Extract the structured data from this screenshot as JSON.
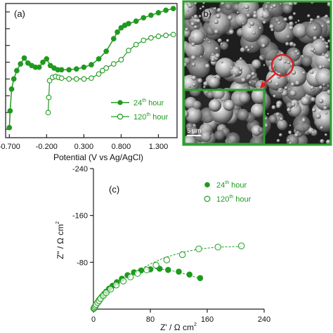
{
  "colors": {
    "series": "#1f9a1f",
    "micrograph_frame": "#2e9e2e",
    "highlight": "#d42020",
    "axis": "#222222"
  },
  "chart_data": [
    {
      "id": "a",
      "type": "line",
      "panel_label": "(a)",
      "xlabel": "Potential (V vs Ag/AgCl)",
      "ylabel": "",
      "xlim": [
        -0.75,
        1.55
      ],
      "ylim": [
        -8.0,
        0.0
      ],
      "xticks": [
        "-0.700",
        "-0.200",
        "0.300",
        "0.800",
        "1.300"
      ],
      "xtick_values": [
        -0.7,
        -0.2,
        0.3,
        0.8,
        1.3
      ],
      "yticks_unlabeled": [
        -7.5,
        -6.5,
        -5.5,
        -4.5,
        -3.5,
        -2.5,
        -1.5,
        -0.5
      ],
      "legend_position": "bottom-right",
      "series": [
        {
          "name": "24th hour",
          "name_base": "24",
          "name_sup": "th",
          "name_rest": " hour",
          "marker": "filled-circle",
          "x": [
            -0.7,
            -0.69,
            -0.67,
            -0.64,
            -0.6,
            -0.55,
            -0.5,
            -0.45,
            -0.4,
            -0.35,
            -0.3,
            -0.25,
            -0.2,
            -0.15,
            -0.1,
            -0.05,
            0.0,
            0.1,
            0.2,
            0.3,
            0.4,
            0.5,
            0.6,
            0.7,
            0.75,
            0.8,
            0.85,
            0.9,
            1.0,
            1.1,
            1.2,
            1.3,
            1.4,
            1.5
          ],
          "y": [
            -7.4,
            -6.4,
            -5.1,
            -4.5,
            -4.0,
            -3.6,
            -3.25,
            -3.55,
            -3.7,
            -3.8,
            -3.8,
            -3.5,
            -3.3,
            -3.7,
            -3.85,
            -3.95,
            -3.95,
            -3.95,
            -3.9,
            -3.8,
            -3.65,
            -3.3,
            -2.85,
            -2.1,
            -1.7,
            -1.45,
            -1.3,
            -1.2,
            -1.05,
            -0.85,
            -0.7,
            -0.55,
            -0.4,
            -0.3
          ]
        },
        {
          "name": "120th hour",
          "name_base": "120",
          "name_sup": "th",
          "name_rest": " hour",
          "marker": "open-circle",
          "x": [
            -0.18,
            -0.17,
            -0.16,
            -0.12,
            -0.08,
            -0.04,
            0.0,
            0.1,
            0.2,
            0.3,
            0.4,
            0.5,
            0.55,
            0.6,
            0.7,
            0.8,
            0.9,
            1.0,
            1.1,
            1.2,
            1.3,
            1.4,
            1.5
          ],
          "y": [
            -6.5,
            -5.6,
            -4.6,
            -4.4,
            -4.35,
            -4.4,
            -4.45,
            -4.5,
            -4.5,
            -4.5,
            -4.45,
            -4.2,
            -4.0,
            -3.85,
            -3.6,
            -3.35,
            -2.8,
            -2.45,
            -2.2,
            -2.05,
            -1.95,
            -1.9,
            -1.85
          ]
        }
      ]
    },
    {
      "id": "c",
      "type": "scatter",
      "panel_label": "(c)",
      "xlabel": "Z' / Ω cm",
      "xlabel_sup": "2",
      "ylabel": "Z\" / Ω cm",
      "ylabel_sup": "2",
      "xlim": [
        0,
        240
      ],
      "ylim": [
        0,
        -240
      ],
      "xticks": [
        "0",
        "80",
        "160",
        "240"
      ],
      "xtick_values": [
        0,
        80,
        160,
        240
      ],
      "yticks": [
        "-240",
        "-160",
        "-80"
      ],
      "ytick_values": [
        -240,
        -160,
        -80
      ],
      "legend_position": "top-right",
      "series": [
        {
          "name": "24th hour",
          "name_base": "24",
          "name_sup": "th",
          "name_rest": " hour",
          "marker": "filled-circle",
          "x": [
            0.5,
            1,
            1.5,
            2,
            2.5,
            3,
            3.5,
            4,
            5,
            6,
            7,
            8,
            10,
            12,
            15,
            18,
            22,
            27,
            33,
            40,
            48,
            57,
            67,
            80,
            93,
            105,
            120,
            135,
            150
          ],
          "y": [
            -1,
            -2,
            -3,
            -4,
            -5,
            -6,
            -7,
            -8,
            -10,
            -12,
            -14,
            -16,
            -19,
            -22,
            -26,
            -30,
            -35,
            -40,
            -46,
            -52,
            -58,
            -63,
            -66,
            -68,
            -69,
            -67,
            -64,
            -59,
            -53
          ],
          "fit_x": [
            0,
            2,
            5,
            10,
            18,
            30,
            45,
            60,
            75,
            90,
            105,
            120,
            135,
            150
          ],
          "fit_y": [
            0,
            -4,
            -10,
            -19,
            -30,
            -44,
            -56,
            -64,
            -68,
            -69,
            -67,
            -63,
            -58,
            -52
          ]
        },
        {
          "name": "120th hour",
          "name_base": "120",
          "name_sup": "th",
          "name_rest": " hour",
          "marker": "open-circle",
          "x": [
            0.5,
            1,
            2,
            3,
            4,
            6,
            8,
            10,
            14,
            18,
            24,
            32,
            42,
            52,
            62,
            75,
            88,
            103,
            125,
            148,
            175,
            208
          ],
          "y": [
            -1,
            -2,
            -4,
            -6,
            -8,
            -11,
            -14,
            -18,
            -23,
            -28,
            -34,
            -41,
            -48,
            -55,
            -61,
            -67,
            -75,
            -84,
            -93,
            -103,
            -106,
            -108
          ],
          "fit_x": [
            0,
            3,
            8,
            15,
            25,
            40,
            60,
            80,
            100,
            125,
            150,
            175,
            210
          ],
          "fit_y": [
            0,
            -6,
            -14,
            -24,
            -35,
            -49,
            -64,
            -77,
            -88,
            -97,
            -103,
            -106,
            -107
          ]
        }
      ]
    }
  ],
  "micrograph": {
    "panel_label": "(b)",
    "scale_bar": "5 µm"
  }
}
